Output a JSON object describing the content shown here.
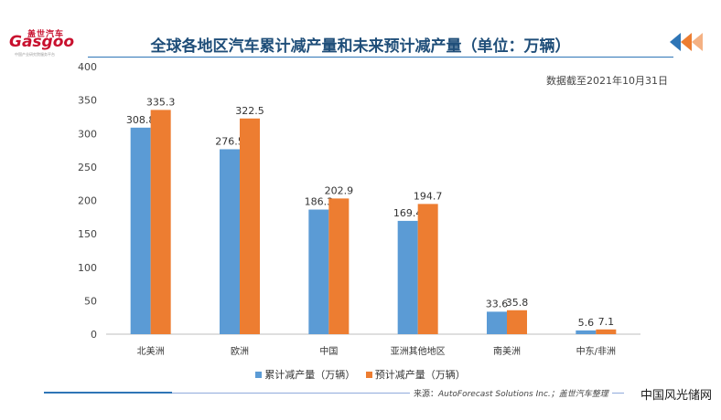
{
  "logo": {
    "cn": "盖世汽车",
    "en": "Gasgoo",
    "sub": "中国产业研究院服务平台"
  },
  "title": "全球各地区汽车累计减产量和未来预计减产量（单位：万辆）",
  "date_note": "数据截至2021年10月31日",
  "legend": [
    "累计减产量（万辆）",
    "预计减产量（万辆）"
  ],
  "source_label": "来源：",
  "source_text": "AutoForecast Solutions Inc.；盖世汽车整理",
  "site_mark": "中国风光储网",
  "colors": {
    "series1": "#5b9bd5",
    "series2": "#ed7d31",
    "title": "#1f4e79"
  },
  "chart_data": {
    "type": "bar",
    "categories": [
      "北美洲",
      "欧洲",
      "中国",
      "亚洲其他地区",
      "南美洲",
      "中东/非洲"
    ],
    "series": [
      {
        "name": "累计减产量（万辆）",
        "values": [
          308.8,
          276.5,
          186.3,
          169.4,
          33.6,
          5.6
        ]
      },
      {
        "name": "预计减产量（万辆）",
        "values": [
          335.3,
          322.5,
          202.9,
          194.7,
          35.8,
          7.1
        ]
      }
    ],
    "ylim": [
      0,
      400
    ],
    "yticks": [
      0,
      50,
      100,
      150,
      200,
      250,
      300,
      350,
      400
    ],
    "grid": false,
    "legend_position": "bottom"
  }
}
